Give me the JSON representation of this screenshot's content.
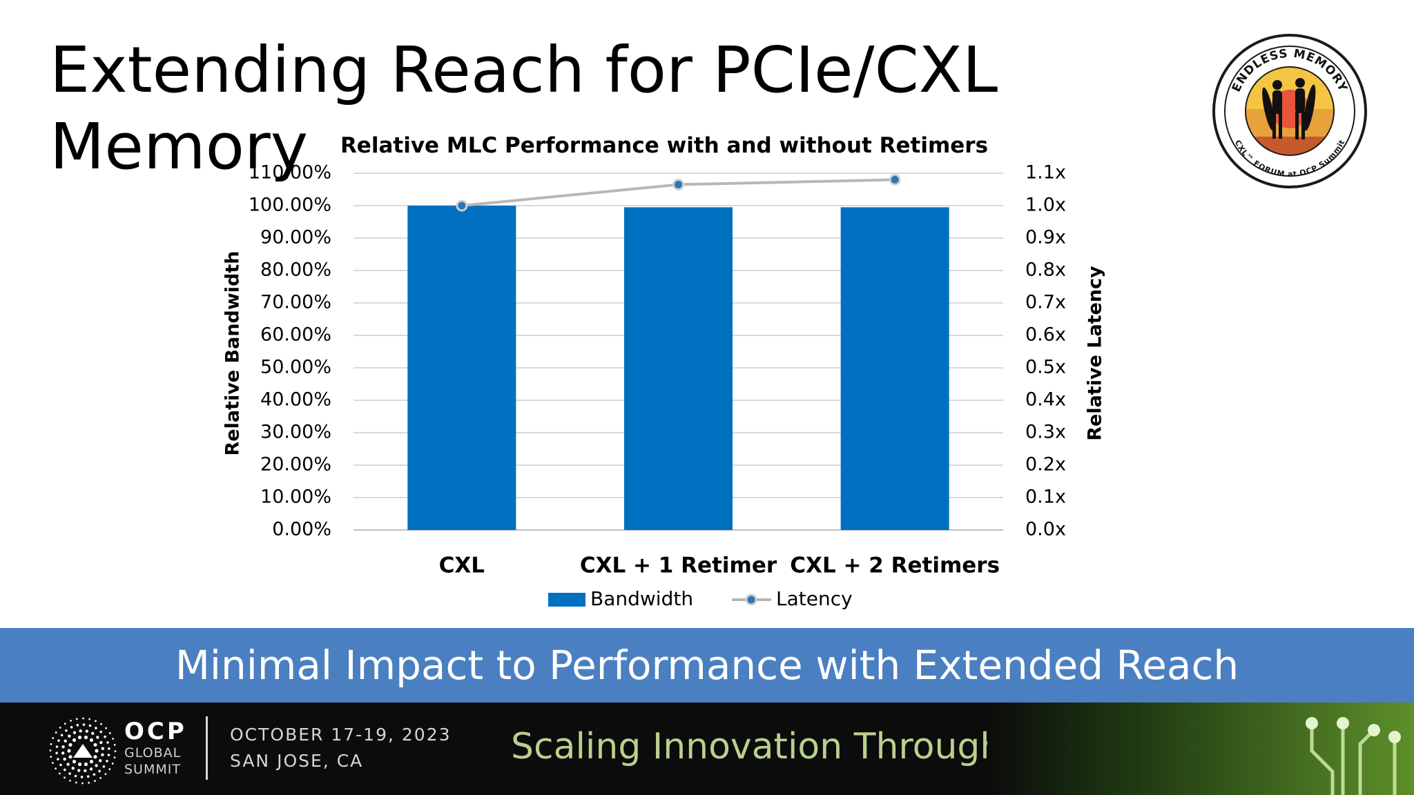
{
  "slide": {
    "title_line1": "Extending Reach for PCIe/CXL",
    "title_line2": "Memory",
    "banner": "Minimal Impact to Performance with Extended Reach"
  },
  "logo": {
    "top_text": "ENDLESS MEMORY",
    "bottom_text": "CXL™ FORUM at OCP Summit",
    "ring_color": "#1a1a1a",
    "sky_color": "#e9a23b"
  },
  "footer": {
    "brand": "OCP",
    "brand_sub1": "GLOBAL",
    "brand_sub2": "SUMMIT",
    "date": "OCTOBER 17-19, 2023",
    "location": "SAN JOSE, CA",
    "tagline": "Scaling Innovation Through Collaboration"
  },
  "chart_data": {
    "type": "bar",
    "title": "Relative MLC Performance with and without Retimers",
    "categories": [
      "CXL",
      "CXL + 1 Retimer",
      "CXL + 2 Retimers"
    ],
    "series": [
      {
        "name": "Bandwidth",
        "type": "bar",
        "axis": "left",
        "color": "#0070c0",
        "values": [
          1.0,
          0.995,
          0.995
        ]
      },
      {
        "name": "Latency",
        "type": "line",
        "axis": "right",
        "color": "#b7b7b7",
        "marker_color": "#2e75b6",
        "values": [
          1.0,
          1.065,
          1.08
        ]
      }
    ],
    "ylabel": "Relative Bandwidth",
    "y2label": "Relative Latency",
    "ylim": [
      0,
      1.1
    ],
    "y2lim": [
      0,
      1.1
    ],
    "yticks": [
      "0.00%",
      "10.00%",
      "20.00%",
      "30.00%",
      "40.00%",
      "50.00%",
      "60.00%",
      "70.00%",
      "80.00%",
      "90.00%",
      "100.00%",
      "110.00%"
    ],
    "y2ticks": [
      "0.0x",
      "0.1x",
      "0.2x",
      "0.3x",
      "0.4x",
      "0.5x",
      "0.6x",
      "0.7x",
      "0.8x",
      "0.9x",
      "1.0x",
      "1.1x"
    ],
    "grid": true,
    "legend": "bottom"
  }
}
